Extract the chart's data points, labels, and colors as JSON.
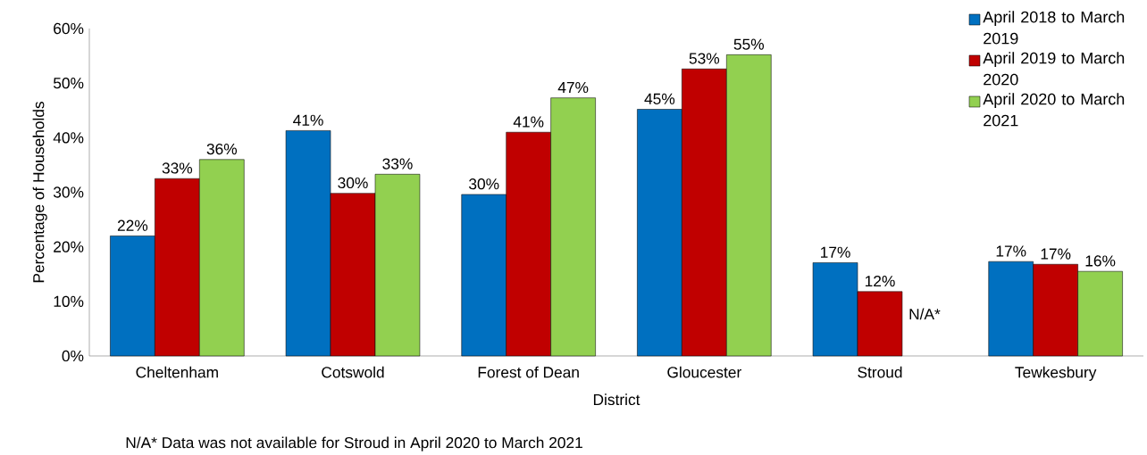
{
  "chart_data": {
    "type": "bar",
    "xlabel": "District",
    "ylabel": "Percentage of Households",
    "categories": [
      "Cheltenham",
      "Cotswold",
      "Forest of Dean",
      "Gloucester",
      "Stroud",
      "Tewkesbury"
    ],
    "series": [
      {
        "name": "April 2018 to March 2019",
        "color": "#0070c0",
        "values": [
          22,
          41.3,
          29.6,
          45.2,
          17.1,
          17.3
        ],
        "value_labels": [
          "22%",
          "41%",
          "30%",
          "45%",
          "17%",
          "17%"
        ]
      },
      {
        "name": "April 2019 to March 2020",
        "color": "#c00000",
        "values": [
          32.5,
          29.8,
          41,
          52.6,
          11.8,
          16.8
        ],
        "value_labels": [
          "33%",
          "30%",
          "41%",
          "53%",
          "12%",
          "17%"
        ]
      },
      {
        "name": "April 2020 to March 2021",
        "color": "#92d050",
        "values": [
          36,
          33.3,
          47.3,
          55.2,
          null,
          15.5
        ],
        "value_labels": [
          "36%",
          "33%",
          "47%",
          "55%",
          "N/A*",
          "16%"
        ]
      }
    ],
    "ylim": [
      0,
      60
    ],
    "yticks": [
      {
        "value": 0,
        "label": "0%"
      },
      {
        "value": 10,
        "label": "10%"
      },
      {
        "value": 20,
        "label": "20%"
      },
      {
        "value": 30,
        "label": "30%"
      },
      {
        "value": 40,
        "label": "40%"
      },
      {
        "value": 50,
        "label": "50%"
      },
      {
        "value": 60,
        "label": "60%"
      }
    ],
    "grid": false,
    "legend": "top right",
    "annotations": [
      "N/A* Data was not available for Stroud in April 2020 to March 2021"
    ]
  }
}
